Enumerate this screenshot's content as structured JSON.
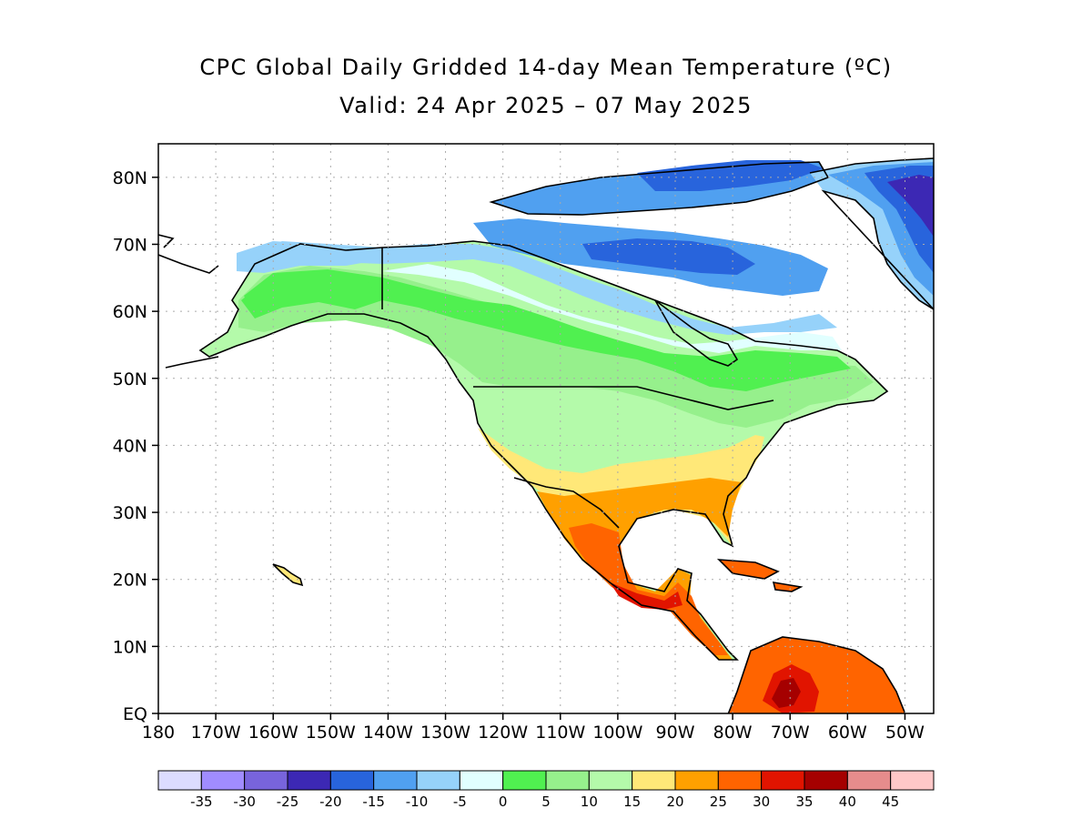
{
  "title": "CPC Global Daily Gridded 14-day Mean Temperature (ºC)",
  "subtitle": "Valid: 24 Apr 2025 – 07 May 2025",
  "map": {
    "projection": "cylindrical equidistant",
    "lon_range": [
      -180,
      -45
    ],
    "lat_range": [
      0,
      85
    ],
    "lat_ticks": [
      {
        "value": 80,
        "label": "80N"
      },
      {
        "value": 70,
        "label": "70N"
      },
      {
        "value": 60,
        "label": "60N"
      },
      {
        "value": 50,
        "label": "50N"
      },
      {
        "value": 40,
        "label": "40N"
      },
      {
        "value": 30,
        "label": "30N"
      },
      {
        "value": 20,
        "label": "20N"
      },
      {
        "value": 10,
        "label": "10N"
      },
      {
        "value": 0,
        "label": "EQ"
      }
    ],
    "lon_ticks": [
      {
        "value": -180,
        "label": "180"
      },
      {
        "value": -170,
        "label": "170W"
      },
      {
        "value": -160,
        "label": "160W"
      },
      {
        "value": -150,
        "label": "150W"
      },
      {
        "value": -140,
        "label": "140W"
      },
      {
        "value": -130,
        "label": "130W"
      },
      {
        "value": -120,
        "label": "120W"
      },
      {
        "value": -110,
        "label": "110W"
      },
      {
        "value": -100,
        "label": "100W"
      },
      {
        "value": -90,
        "label": "90W"
      },
      {
        "value": -80,
        "label": "80W"
      },
      {
        "value": -70,
        "label": "70W"
      },
      {
        "value": -60,
        "label": "60W"
      },
      {
        "value": -50,
        "label": "50W"
      }
    ],
    "grid": "dotted",
    "ocean_color": "#ffffff",
    "coastline_color": "#000000"
  },
  "colorbar": {
    "colors": [
      "#dcdcff",
      "#a08cff",
      "#7864dc",
      "#3c28b4",
      "#2864dc",
      "#50a0f0",
      "#96d2fa",
      "#e1ffff",
      "#50f050",
      "#96f08c",
      "#b4faaa",
      "#ffe878",
      "#ffa000",
      "#ff6400",
      "#e11400",
      "#a50000",
      "#e68c8c",
      "#ffc8c8"
    ],
    "labels": [
      "-35",
      "-30",
      "-25",
      "-20",
      "-15",
      "-10",
      "-5",
      "0",
      "5",
      "10",
      "15",
      "20",
      "25",
      "30",
      "35",
      "40",
      "45"
    ]
  }
}
